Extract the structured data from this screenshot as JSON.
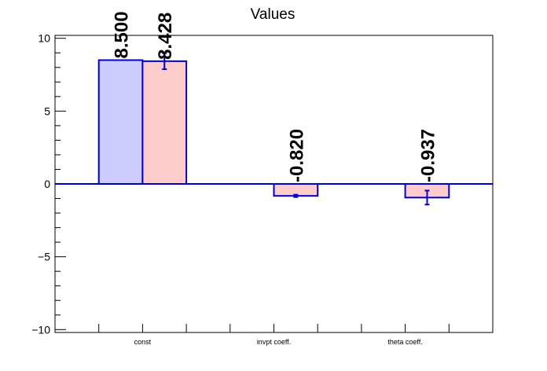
{
  "chart_data": {
    "type": "bar",
    "title": "Values",
    "xlabel": "",
    "ylabel": "",
    "ylim": [
      -10.2,
      10.2
    ],
    "yticks": [
      -10,
      -5,
      0,
      5,
      10
    ],
    "ytick_labels": [
      "−10",
      "−5",
      "0",
      "5",
      "10"
    ],
    "categories": [
      "const",
      "invpt coeff.",
      "theta coeff."
    ],
    "grid": false,
    "legend": "none",
    "series": [
      {
        "values": [
          8.5,
          null,
          null
        ],
        "errors": [
          0,
          null,
          null
        ],
        "labels": [
          "8.500",
          "",
          ""
        ],
        "fill": "#ccccff",
        "stroke": "#0000cc"
      },
      {
        "values": [
          8.428,
          -0.82,
          -0.937
        ],
        "errors": [
          0.55,
          0.08,
          0.48
        ],
        "labels": [
          "8.428",
          "-0.820",
          "-0.937"
        ],
        "fill": "#ffcccc",
        "stroke": "#0000cc"
      }
    ]
  }
}
